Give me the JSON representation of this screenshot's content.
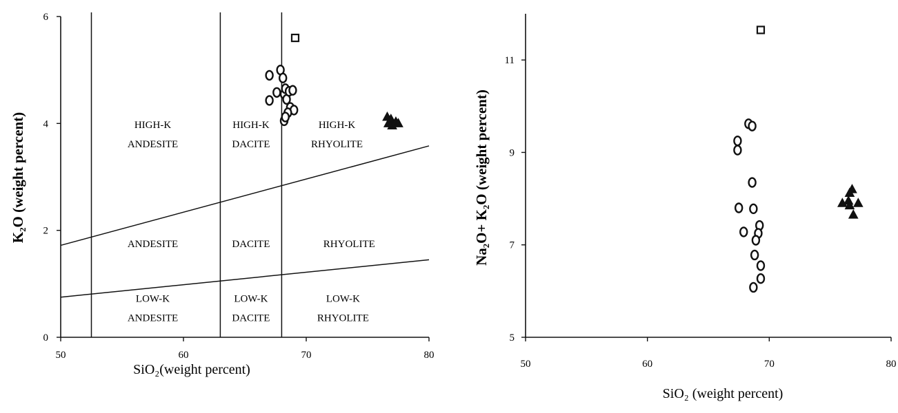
{
  "chart_data": [
    {
      "type": "scatter",
      "title": "",
      "xlabel": "SiO₂(weight percent)",
      "ylabel": "K₂O (weight percent)",
      "xlim": [
        50,
        80
      ],
      "ylim": [
        0,
        6
      ],
      "x_ticks": [
        "50",
        "60",
        "70",
        "80"
      ],
      "y_ticks": [
        "0",
        "2",
        "4",
        "6"
      ],
      "grid": false,
      "legend": "none",
      "vertical_boundaries": [
        52.5,
        63,
        68
      ],
      "boundary_lines": [
        {
          "x": [
            50,
            80
          ],
          "y": [
            1.72,
            3.58
          ]
        },
        {
          "x": [
            50,
            80
          ],
          "y": [
            0.75,
            1.45
          ]
        }
      ],
      "field_labels": [
        {
          "lines": [
            "HIGH-K",
            "ANDESITE"
          ],
          "x": 57.5,
          "y": 3.8
        },
        {
          "lines": [
            "HIGH-K",
            "DACITE"
          ],
          "x": 65.5,
          "y": 3.8
        },
        {
          "lines": [
            "HIGH-K",
            "RHYOLITE"
          ],
          "x": 72.5,
          "y": 3.8
        },
        {
          "lines": [
            "ANDESITE"
          ],
          "x": 57.5,
          "y": 1.75
        },
        {
          "lines": [
            "DACITE"
          ],
          "x": 65.5,
          "y": 1.75
        },
        {
          "lines": [
            "RHYOLITE"
          ],
          "x": 73.5,
          "y": 1.75
        },
        {
          "lines": [
            "LOW-K",
            "ANDESITE"
          ],
          "x": 57.5,
          "y": 0.55
        },
        {
          "lines": [
            "LOW-K",
            "DACITE"
          ],
          "x": 65.5,
          "y": 0.55
        },
        {
          "lines": [
            "LOW-K",
            "RHYOLITE"
          ],
          "x": 73,
          "y": 0.55
        }
      ],
      "series": [
        {
          "marker": "circle",
          "x": [
            67.0,
            67.0,
            67.6,
            67.9,
            68.1,
            68.2,
            68.3,
            68.4,
            68.6,
            68.7,
            68.9,
            69.0,
            68.2,
            68.5,
            68.3
          ],
          "y": [
            4.9,
            4.43,
            4.58,
            5.0,
            4.85,
            4.55,
            4.65,
            4.45,
            4.6,
            4.3,
            4.62,
            4.25,
            4.05,
            4.2,
            4.12
          ]
        },
        {
          "marker": "square",
          "x": [
            69.1
          ],
          "y": [
            5.6
          ]
        },
        {
          "marker": "triangle",
          "x": [
            76.6,
            76.9,
            77.0,
            77.3,
            76.7,
            77.5
          ],
          "y": [
            4.12,
            4.08,
            3.96,
            4.03,
            4.0,
            4.0
          ]
        }
      ]
    },
    {
      "type": "scatter",
      "title": "",
      "xlabel": "SiO₂ (weight percent)",
      "ylabel": "Na₂O+ K₂O (weight percent)",
      "xlim": [
        50,
        80
      ],
      "ylim": [
        5,
        12
      ],
      "x_ticks": [
        "50",
        "60",
        "70",
        "80"
      ],
      "y_ticks": [
        "5",
        "7",
        "9",
        "11"
      ],
      "grid": false,
      "legend": "none",
      "series": [
        {
          "marker": "circle",
          "x": [
            67.4,
            67.4,
            67.5,
            68.3,
            68.6,
            68.6,
            68.7,
            67.9,
            69.2,
            69.1,
            68.9,
            68.8,
            69.3,
            69.3,
            68.7
          ],
          "y": [
            9.25,
            9.05,
            7.8,
            9.62,
            9.57,
            8.35,
            7.78,
            7.28,
            7.42,
            7.25,
            7.1,
            6.78,
            6.55,
            6.27,
            6.08
          ]
        },
        {
          "marker": "square",
          "x": [
            69.3
          ],
          "y": [
            11.65
          ]
        },
        {
          "marker": "triangle",
          "x": [
            76.8,
            76.6,
            76.5,
            76.0,
            76.6,
            77.3,
            76.9
          ],
          "y": [
            8.2,
            8.12,
            7.95,
            7.9,
            7.85,
            7.9,
            7.65
          ]
        }
      ]
    }
  ]
}
